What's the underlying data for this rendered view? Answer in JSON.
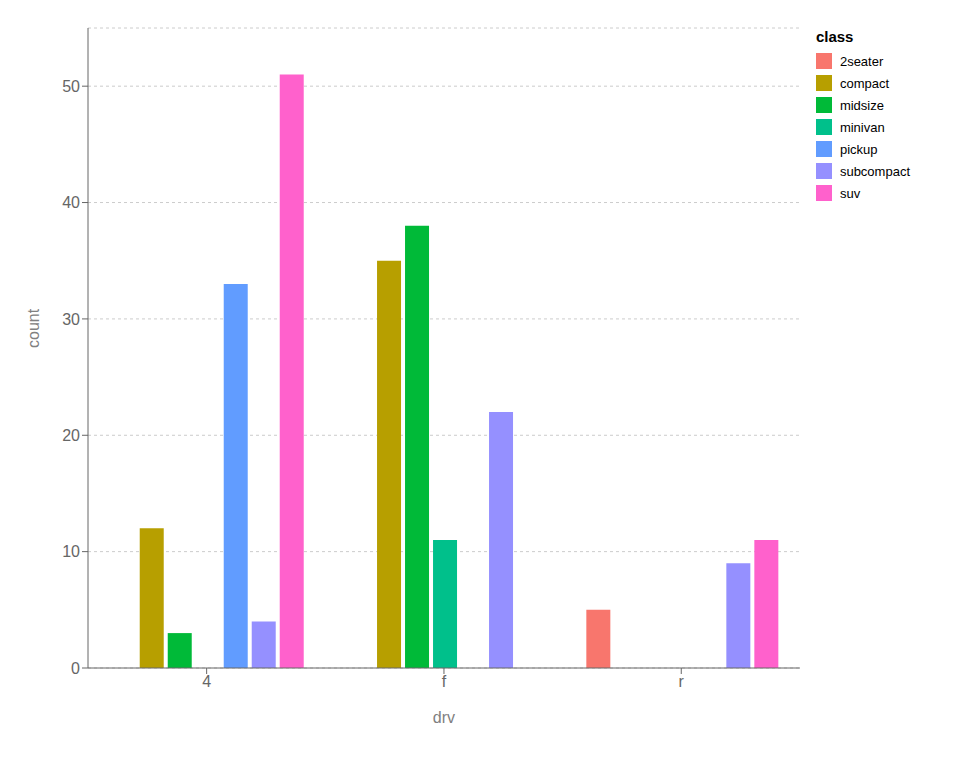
{
  "chart_data": {
    "type": "bar",
    "xlabel": "drv",
    "ylabel": "count",
    "legend_title": "class",
    "categories": [
      "4",
      "f",
      "r"
    ],
    "series": [
      {
        "name": "2seater",
        "color": "#F8766D",
        "values": [
          null,
          null,
          5
        ]
      },
      {
        "name": "compact",
        "color": "#B79F00",
        "values": [
          12,
          35,
          null
        ]
      },
      {
        "name": "midsize",
        "color": "#00BA38",
        "values": [
          3,
          38,
          null
        ]
      },
      {
        "name": "minivan",
        "color": "#00C08B",
        "values": [
          null,
          11,
          null
        ]
      },
      {
        "name": "pickup",
        "color": "#619CFF",
        "values": [
          33,
          null,
          null
        ]
      },
      {
        "name": "subcompact",
        "color": "#9590FF",
        "values": [
          4,
          22,
          9
        ]
      },
      {
        "name": "suv",
        "color": "#FF61CC",
        "values": [
          51,
          null,
          11
        ]
      }
    ],
    "ylim": [
      0,
      55
    ],
    "yticks": [
      0,
      10,
      20,
      30,
      40,
      50
    ],
    "grid": true,
    "legend": "right"
  }
}
